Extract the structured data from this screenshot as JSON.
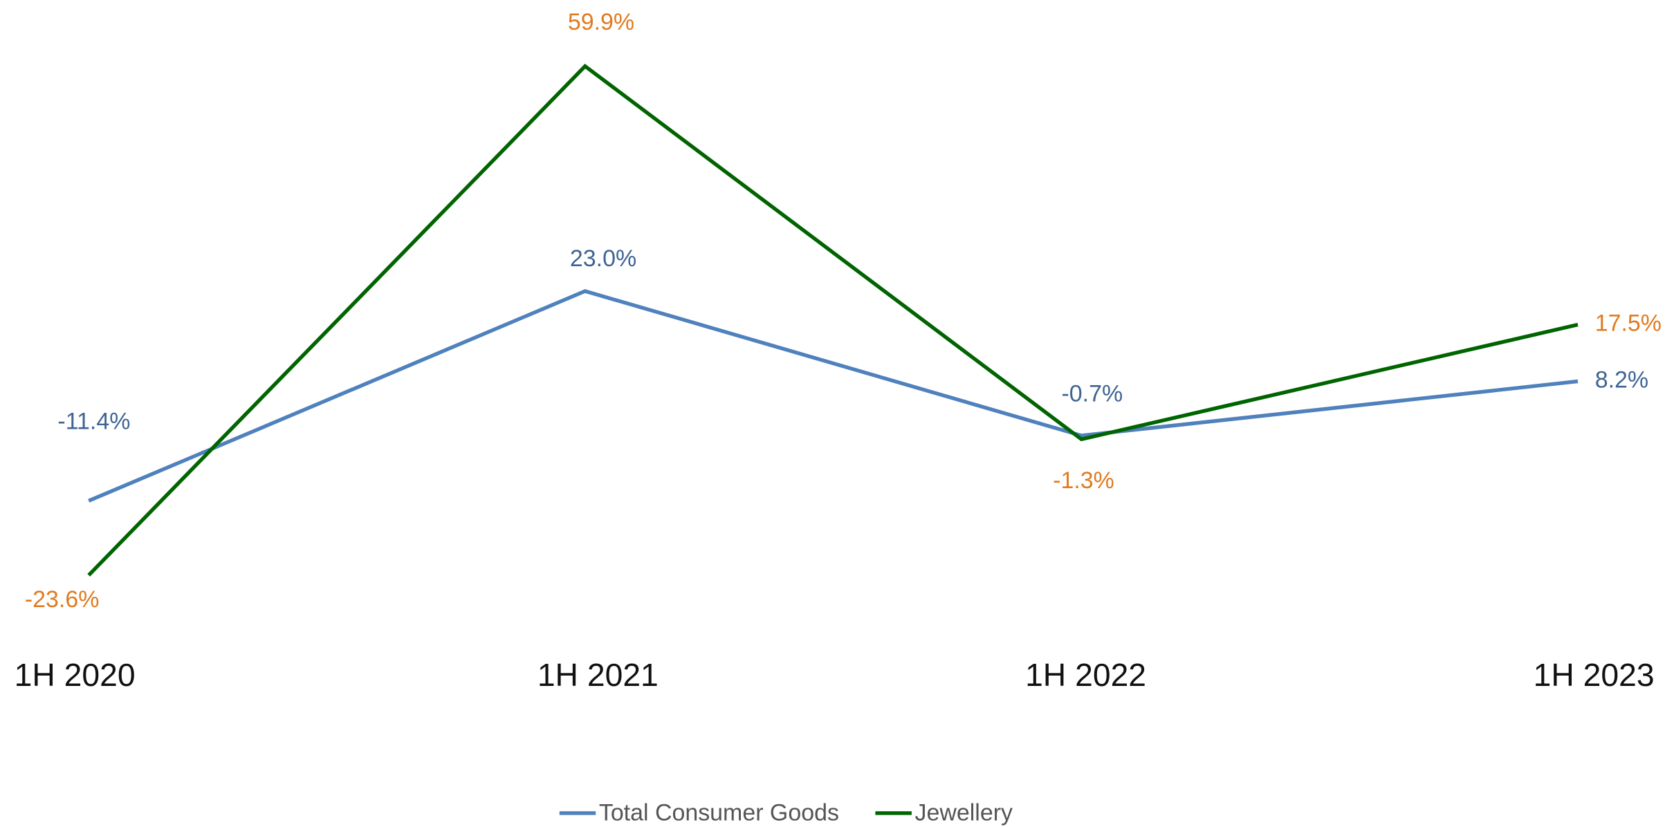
{
  "chart_data": {
    "type": "line",
    "categories": [
      "1H 2020",
      "1H 2021",
      "1H 2022",
      "1H 2023"
    ],
    "series": [
      {
        "name": "Total Consumer Goods",
        "color": "#4f81bd",
        "label_color": "#3f6494",
        "values": [
          -11.4,
          23.0,
          -0.7,
          8.2
        ],
        "value_labels": [
          "-11.4%",
          "23.0%",
          "-0.7%",
          "8.2%"
        ]
      },
      {
        "name": "Jewellery",
        "color": "#006400",
        "label_color": "#e07b20",
        "values": [
          -23.6,
          59.9,
          -1.3,
          17.5
        ],
        "value_labels": [
          "-23.6%",
          "59.9%",
          "-1.3%",
          "17.5%"
        ]
      }
    ],
    "ylim": [
      -30,
      70
    ],
    "grid": false,
    "legend": "bottom"
  }
}
